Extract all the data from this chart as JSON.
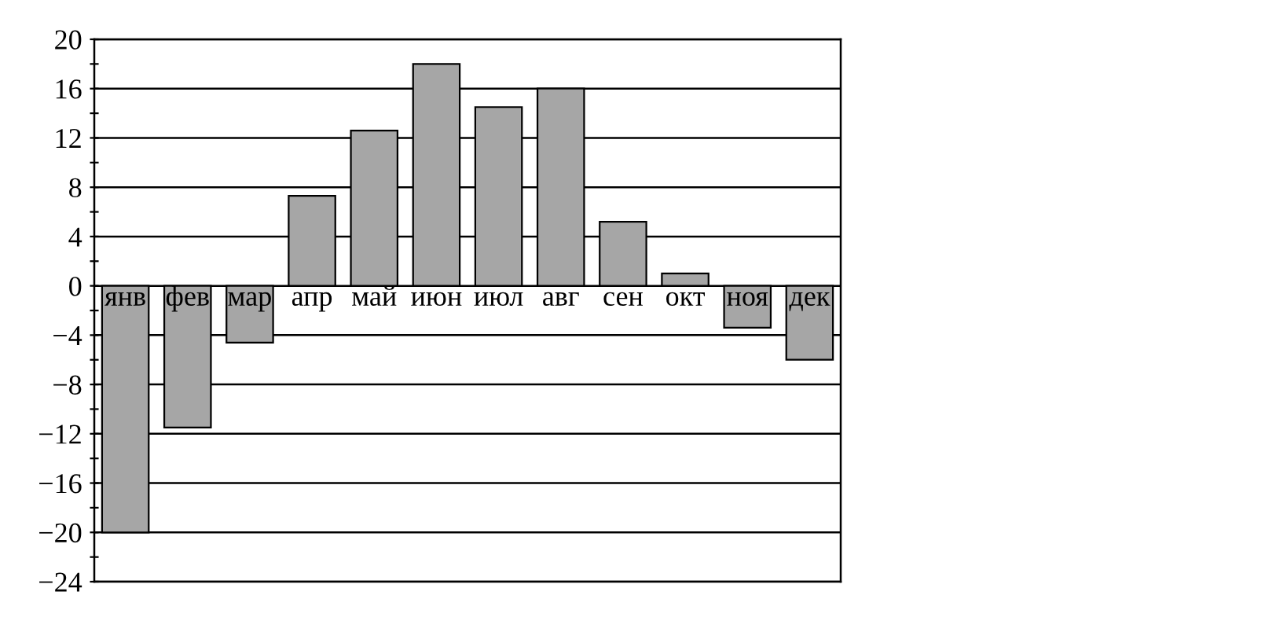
{
  "chart_data": {
    "type": "bar",
    "categories": [
      "янв",
      "фев",
      "мар",
      "апр",
      "май",
      "июн",
      "июл",
      "авг",
      "сен",
      "окт",
      "ноя",
      "дек"
    ],
    "values": [
      -20,
      -11.5,
      -4.6,
      7.3,
      12.6,
      18,
      14.5,
      16,
      5.2,
      1,
      -3.4,
      -6
    ],
    "color": "#a6a6a6",
    "ylim": [
      -24,
      20
    ],
    "yticks": [
      {
        "value": -24,
        "label": "−24"
      },
      {
        "value": -22,
        "label": null
      },
      {
        "value": -20,
        "label": "−20"
      },
      {
        "value": -18,
        "label": null
      },
      {
        "value": -16,
        "label": "−16"
      },
      {
        "value": -14,
        "label": null
      },
      {
        "value": -12,
        "label": "−12"
      },
      {
        "value": -10,
        "label": null
      },
      {
        "value": -8,
        "label": "−8"
      },
      {
        "value": -6,
        "label": null
      },
      {
        "value": -4,
        "label": "−4"
      },
      {
        "value": -2,
        "label": null
      },
      0,
      {
        "value": 2,
        "label": null
      },
      4,
      {
        "value": 6,
        "label": null
      },
      8,
      {
        "value": 10,
        "label": null
      },
      12,
      {
        "value": 14,
        "label": null
      },
      16,
      {
        "value": 18,
        "label": null
      },
      20
    ],
    "grid": "y"
  }
}
